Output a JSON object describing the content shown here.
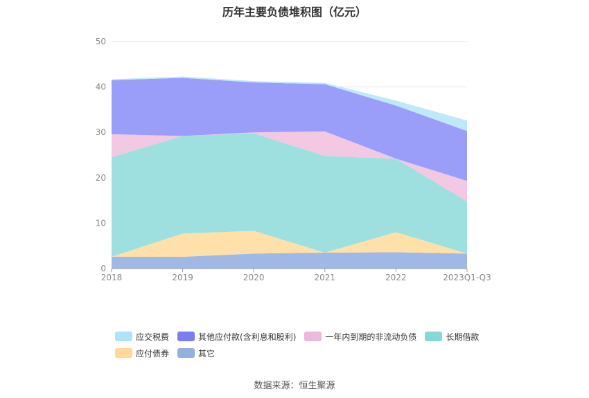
{
  "title": "历年主要负债堆积图（亿元）",
  "source_text": "数据来源：恒生聚源",
  "chart_data": {
    "type": "area",
    "stacked": true,
    "title": "历年主要负债堆积图（亿元）",
    "xlabel": "",
    "ylabel": "",
    "x": [
      "2018",
      "2019",
      "2020",
      "2021",
      "2022",
      "2023Q1-Q3"
    ],
    "ylim": [
      0,
      50
    ],
    "yticks": [
      0,
      10,
      20,
      30,
      40,
      50
    ],
    "grid": true,
    "legend_position": "bottom",
    "series": [
      {
        "name": "其它",
        "color": "#9fb8e6",
        "values": [
          2.6,
          2.6,
          3.3,
          3.5,
          3.6,
          3.3
        ]
      },
      {
        "name": "应付债券",
        "color": "#ffe0a8",
        "values": [
          0.0,
          5.1,
          5.0,
          0.0,
          4.4,
          0.0
        ]
      },
      {
        "name": "长期借款",
        "color": "#9ee0df",
        "values": [
          21.9,
          21.5,
          21.5,
          21.3,
          16.2,
          11.5
        ]
      },
      {
        "name": "一年内到期的非流动负债",
        "color": "#f2c8e2",
        "values": [
          5.1,
          0.0,
          0.2,
          5.4,
          0.0,
          4.5
        ]
      },
      {
        "name": "其他应付款(含利息和股利)",
        "color": "#9a9ef9",
        "values": [
          11.9,
          12.8,
          11.0,
          10.4,
          11.7,
          11.0
        ]
      },
      {
        "name": "应交税费",
        "color": "#bfe9f8",
        "values": [
          0.2,
          0.3,
          0.3,
          0.3,
          1.1,
          2.3
        ]
      }
    ]
  },
  "legend": {
    "rows": [
      [
        {
          "label": "应交税费",
          "color": "#aee3f8"
        },
        {
          "label": "其他应付款(含利息和股利)",
          "color": "#7b7ef0"
        },
        {
          "label": "一年内到期的非流动负债",
          "color": "#ecb8dc"
        },
        {
          "label": "长期借款",
          "color": "#86d8d6"
        }
      ],
      [
        {
          "label": "应付债券",
          "color": "#ffd99a"
        },
        {
          "label": "其它",
          "color": "#93b0df"
        }
      ]
    ]
  }
}
